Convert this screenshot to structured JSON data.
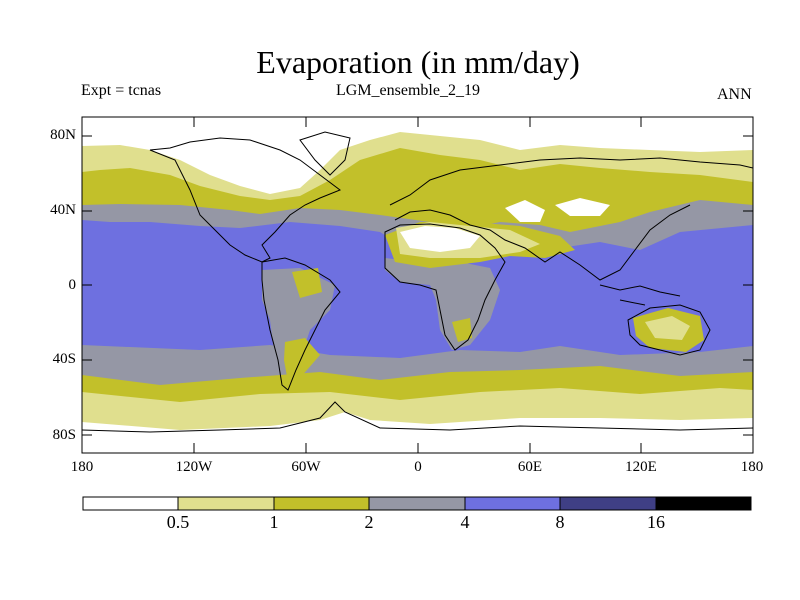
{
  "title": "Evaporation (in mm/day)",
  "expt_label": "Expt = tcnas",
  "run_label": "LGM_ensemble_2_19",
  "period_label": "ANN",
  "colors": {
    "c0": "#ffffff",
    "c1": "#e0df8e",
    "c2": "#c2c02a",
    "c3": "#9597a5",
    "c4": "#6e70e0",
    "c5": "#3f3f85",
    "c6": "#000000",
    "coast": "#000000"
  },
  "chart_data": {
    "type": "map-contour",
    "variable": "Evaporation",
    "units": "mm/day",
    "lat_ticks": [
      "80N",
      "40N",
      "0",
      "40S",
      "80S"
    ],
    "lon_ticks": [
      "180",
      "120W",
      "60W",
      "0",
      "60E",
      "120E",
      "180"
    ],
    "colorbar": {
      "levels": [
        "0.5",
        "1",
        "2",
        "4",
        "8",
        "16"
      ],
      "bins": [
        "<0.5",
        "0.5-1",
        "1-2",
        "2-4",
        "4-8",
        "8-16",
        ">16"
      ]
    }
  }
}
